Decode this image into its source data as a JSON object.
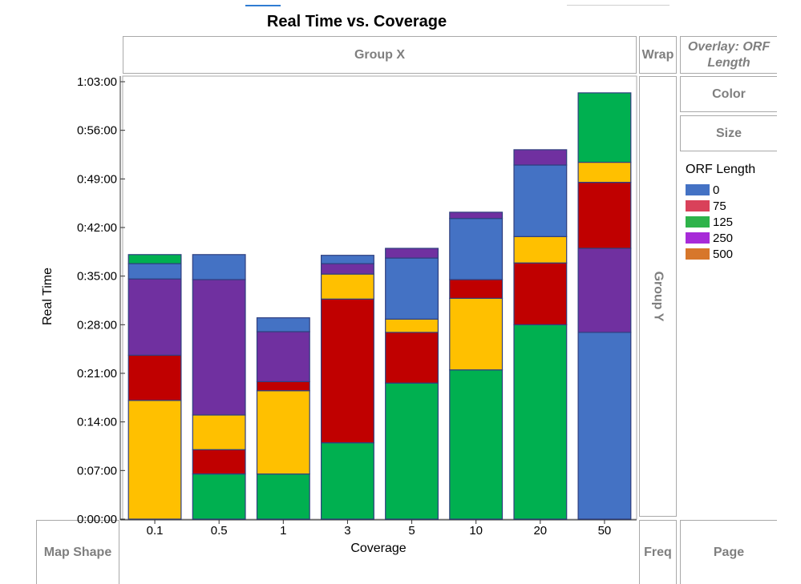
{
  "title": "Real Time vs. Coverage",
  "zones": {
    "group_x": "Group X",
    "wrap": "Wrap",
    "overlay": "Overlay: ORF Length",
    "color": "Color",
    "size": "Size",
    "group_y": "Group Y",
    "map_shape": "Map Shape",
    "freq": "Freq",
    "page": "Page"
  },
  "legend": {
    "title": "ORF Length",
    "items": [
      {
        "label": "0",
        "color": "#4472c4"
      },
      {
        "label": "75",
        "color": "#d9415a"
      },
      {
        "label": "125",
        "color": "#2eb34a"
      },
      {
        "label": "250",
        "color": "#a72bd8"
      },
      {
        "label": "500",
        "color": "#d7772b"
      }
    ]
  },
  "chart_data": {
    "type": "bar",
    "stacked": true,
    "title": "Real Time vs. Coverage",
    "xlabel": "Coverage",
    "ylabel": "Real Time",
    "categories": [
      "0.1",
      "0.5",
      "1",
      "3",
      "5",
      "10",
      "20",
      "50"
    ],
    "ylim_minutes": [
      0,
      63
    ],
    "y_ticks": [
      "0:00:00",
      "0:07:00",
      "0:14:00",
      "0:21:00",
      "0:28:00",
      "0:35:00",
      "0:42:00",
      "0:49:00",
      "0:56:00",
      "1:03:00"
    ],
    "y_units": "minutes",
    "segment_colors": {
      "green": "#00b050",
      "red": "#c00000",
      "gold": "#ffc000",
      "purple": "#7030a0",
      "blue": "#4472c4"
    },
    "bars": [
      {
        "category": "0.1",
        "segments": [
          {
            "color": "gold",
            "value": 17.1
          },
          {
            "color": "red",
            "value": 6.5
          },
          {
            "color": "purple",
            "value": 11.0
          },
          {
            "color": "blue",
            "value": 2.2
          },
          {
            "color": "green",
            "value": 1.3
          }
        ]
      },
      {
        "category": "0.5",
        "segments": [
          {
            "color": "green",
            "value": 6.5
          },
          {
            "color": "red",
            "value": 3.5
          },
          {
            "color": "gold",
            "value": 5.0
          },
          {
            "color": "purple",
            "value": 19.5
          },
          {
            "color": "blue",
            "value": 3.6
          }
        ]
      },
      {
        "category": "1",
        "segments": [
          {
            "color": "green",
            "value": 6.5
          },
          {
            "color": "gold",
            "value": 12.0
          },
          {
            "color": "red",
            "value": 1.3
          },
          {
            "color": "purple",
            "value": 7.2
          },
          {
            "color": "blue",
            "value": 2.0
          }
        ]
      },
      {
        "category": "3",
        "segments": [
          {
            "color": "green",
            "value": 11.0
          },
          {
            "color": "red",
            "value": 20.7
          },
          {
            "color": "gold",
            "value": 3.6
          },
          {
            "color": "purple",
            "value": 1.5
          },
          {
            "color": "blue",
            "value": 1.2
          }
        ]
      },
      {
        "category": "5",
        "segments": [
          {
            "color": "green",
            "value": 19.6
          },
          {
            "color": "red",
            "value": 7.3
          },
          {
            "color": "gold",
            "value": 1.9
          },
          {
            "color": "blue",
            "value": 8.8
          },
          {
            "color": "purple",
            "value": 1.4
          }
        ]
      },
      {
        "category": "10",
        "segments": [
          {
            "color": "green",
            "value": 21.5
          },
          {
            "color": "gold",
            "value": 10.3
          },
          {
            "color": "red",
            "value": 2.7
          },
          {
            "color": "blue",
            "value": 8.8
          },
          {
            "color": "purple",
            "value": 0.9
          }
        ]
      },
      {
        "category": "20",
        "segments": [
          {
            "color": "green",
            "value": 28.0
          },
          {
            "color": "red",
            "value": 8.9
          },
          {
            "color": "gold",
            "value": 3.8
          },
          {
            "color": "blue",
            "value": 10.3
          },
          {
            "color": "purple",
            "value": 2.2
          }
        ]
      },
      {
        "category": "50",
        "segments": [
          {
            "color": "blue",
            "value": 26.9
          },
          {
            "color": "purple",
            "value": 12.1
          },
          {
            "color": "red",
            "value": 9.5
          },
          {
            "color": "gold",
            "value": 2.9
          },
          {
            "color": "green",
            "value": 10.0
          }
        ]
      }
    ]
  }
}
